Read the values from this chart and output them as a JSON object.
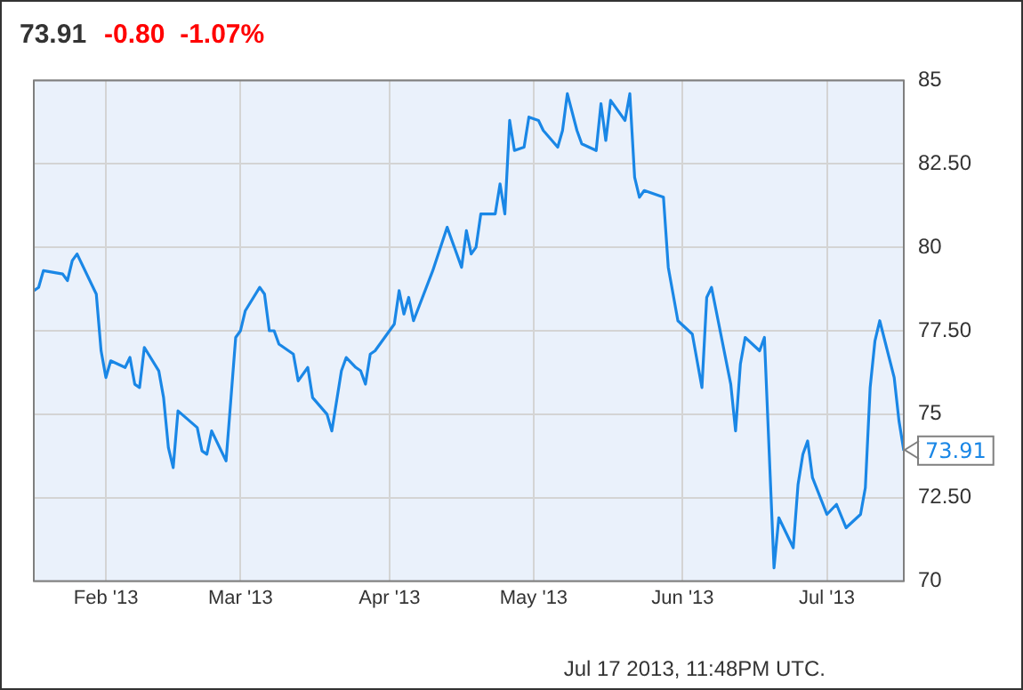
{
  "chart_data": {
    "type": "line",
    "title": "73.91",
    "subtitle": "-0.80  -1.07%",
    "x": [
      "2013-01-17",
      "2013-01-18",
      "2013-01-19",
      "2013-01-23",
      "2013-01-24",
      "2013-01-25",
      "2013-01-26",
      "2013-01-30",
      "2013-01-31",
      "2013-02-01",
      "2013-02-02",
      "2013-02-05",
      "2013-02-06",
      "2013-02-07",
      "2013-02-08",
      "2013-02-09",
      "2013-02-12",
      "2013-02-13",
      "2013-02-14",
      "2013-02-15",
      "2013-02-16",
      "2013-02-20",
      "2013-02-21",
      "2013-02-22",
      "2013-02-23",
      "2013-02-26",
      "2013-02-28",
      "2013-03-01",
      "2013-03-02",
      "2013-03-05",
      "2013-03-06",
      "2013-03-07",
      "2013-03-08",
      "2013-03-09",
      "2013-03-12",
      "2013-03-13",
      "2013-03-15",
      "2013-03-16",
      "2013-03-19",
      "2013-03-20",
      "2013-03-22",
      "2013-03-23",
      "2013-03-25",
      "2013-03-26",
      "2013-03-27",
      "2013-03-28",
      "2013-03-29",
      "2013-04-02",
      "2013-04-03",
      "2013-04-04",
      "2013-04-05",
      "2013-04-06",
      "2013-04-10",
      "2013-04-13",
      "2013-04-16",
      "2013-04-17",
      "2013-04-18",
      "2013-04-19",
      "2013-04-20",
      "2013-04-23",
      "2013-04-24",
      "2013-04-25",
      "2013-04-26",
      "2013-04-27",
      "2013-04-29",
      "2013-04-30",
      "2013-05-02",
      "2013-05-03",
      "2013-05-06",
      "2013-05-07",
      "2013-05-08",
      "2013-05-10",
      "2013-05-11",
      "2013-05-14",
      "2013-05-15",
      "2013-05-16",
      "2013-05-17",
      "2013-05-20",
      "2013-05-21",
      "2013-05-22",
      "2013-05-23",
      "2013-05-24",
      "2013-05-28",
      "2013-05-29",
      "2013-05-30",
      "2013-05-31",
      "2013-06-03",
      "2013-06-05",
      "2013-06-06",
      "2013-06-07",
      "2013-06-11",
      "2013-06-12",
      "2013-06-13",
      "2013-06-14",
      "2013-06-17",
      "2013-06-18",
      "2013-06-20",
      "2013-06-21",
      "2013-06-24",
      "2013-06-25",
      "2013-06-26",
      "2013-06-27",
      "2013-06-28",
      "2013-07-01",
      "2013-07-03",
      "2013-07-05",
      "2013-07-08",
      "2013-07-09",
      "2013-07-10",
      "2013-07-11",
      "2013-07-12",
      "2013-07-15",
      "2013-07-16",
      "2013-07-17"
    ],
    "series": [
      {
        "color": "#1a87e6",
        "values": [
          78.7,
          78.8,
          79.3,
          79.2,
          79.0,
          79.6,
          79.8,
          78.6,
          76.9,
          76.1,
          76.6,
          76.4,
          76.7,
          75.9,
          75.8,
          77.0,
          76.3,
          75.5,
          74.0,
          73.4,
          75.1,
          74.6,
          73.9,
          73.8,
          74.5,
          73.6,
          77.3,
          77.5,
          78.1,
          78.8,
          78.6,
          77.5,
          77.5,
          77.1,
          76.8,
          76.0,
          76.4,
          75.5,
          75.0,
          74.5,
          76.3,
          76.7,
          76.4,
          76.3,
          75.9,
          76.8,
          76.9,
          77.7,
          78.7,
          78.0,
          78.5,
          77.8,
          79.3,
          80.6,
          79.4,
          80.5,
          79.8,
          80.0,
          81.0,
          81.0,
          81.9,
          81.0,
          83.8,
          82.9,
          83.0,
          83.9,
          83.8,
          83.5,
          83.0,
          83.5,
          84.6,
          83.5,
          83.1,
          82.9,
          84.3,
          83.2,
          84.4,
          83.8,
          84.6,
          82.1,
          81.5,
          81.7,
          81.5,
          79.4,
          78.6,
          77.8,
          77.4,
          75.8,
          78.5,
          78.8,
          75.9,
          74.5,
          76.5,
          77.3,
          76.9,
          77.3,
          70.4,
          71.9,
          71.0,
          72.9,
          73.8,
          74.2,
          73.1,
          72.0,
          72.3,
          71.6,
          72.0,
          72.8,
          75.8,
          77.2,
          77.8,
          76.1,
          74.8,
          73.91
        ]
      }
    ],
    "xlim": [
      "2013-01-17",
      "2013-07-17"
    ],
    "xticks": [
      {
        "value": "2013-02-01",
        "label": "Feb '13"
      },
      {
        "value": "2013-03-01",
        "label": "Mar '13"
      },
      {
        "value": "2013-04-01",
        "label": "Apr '13"
      },
      {
        "value": "2013-05-01",
        "label": "May '13"
      },
      {
        "value": "2013-06-01",
        "label": "Jun '13"
      },
      {
        "value": "2013-07-01",
        "label": "Jul '13"
      }
    ],
    "ylim": [
      70,
      85
    ],
    "yticks": [
      70,
      {
        "value": 72.5,
        "label": "72.50"
      },
      75,
      {
        "value": 77.5,
        "label": "77.50"
      },
      80,
      {
        "value": 82.5,
        "label": "82.50"
      },
      85
    ],
    "grid": true,
    "legend": false,
    "marker": "none",
    "line_style": "solid",
    "annotations": [
      {
        "text": "73.91",
        "x": "2013-07-17",
        "y": 73.91
      },
      "Jul 17 2013, 11:48PM UTC."
    ]
  }
}
